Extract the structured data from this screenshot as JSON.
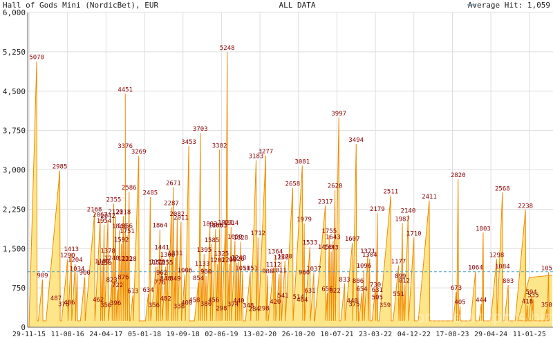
{
  "header": {
    "title": "Hall of Gods Mini (NordicBet), EUR",
    "center": "ALL DATA",
    "legend": "Average Hit: 1,059"
  },
  "watermark": "onlinejackpots.biz",
  "colors": {
    "area_fill": "#fde68a",
    "line": "#f28a00",
    "average": "#4a9fc8",
    "label": "#8b0000",
    "grid": "#dddddd",
    "axis": "#666666"
  },
  "chart_data": {
    "type": "area",
    "title": "Hall of Gods Mini (NordicBet), EUR",
    "ylim": [
      0,
      6000
    ],
    "yticks": [
      "0",
      "750",
      "1,500",
      "2,250",
      "3,000",
      "3,750",
      "4,500",
      "5,250",
      "6,000"
    ],
    "xticks": [
      "29-11-15",
      "11-08-16",
      "24-04-17",
      "05-01-18",
      "19-09-18",
      "02-06-19",
      "13-02-20",
      "26-10-20",
      "10-07-21",
      "23-03-22",
      "04-12-22",
      "17-08-23",
      "29-04-24",
      "11-01-25"
    ],
    "average": 1059,
    "grid": true,
    "legend_position": "top-right",
    "peaks": [
      {
        "x": 0.2,
        "y": 5070
      },
      {
        "x": 0.8,
        "y": 2985
      },
      {
        "x": 0.35,
        "y": 909
      },
      {
        "x": 1.1,
        "y": 1413
      },
      {
        "x": 1.0,
        "y": 1290
      },
      {
        "x": 1.2,
        "y": 1204
      },
      {
        "x": 1.25,
        "y": 1034
      },
      {
        "x": 1.45,
        "y": 960
      },
      {
        "x": 1.7,
        "y": 2168
      },
      {
        "x": 1.85,
        "y": 2067
      },
      {
        "x": 1.95,
        "y": 1954
      },
      {
        "x": 2.05,
        "y": 2042
      },
      {
        "x": 2.2,
        "y": 2355
      },
      {
        "x": 2.25,
        "y": 2120
      },
      {
        "x": 2.45,
        "y": 2118
      },
      {
        "x": 2.6,
        "y": 2586
      },
      {
        "x": 2.35,
        "y": 1846
      },
      {
        "x": 2.5,
        "y": 1856
      },
      {
        "x": 2.55,
        "y": 1751
      },
      {
        "x": 2.4,
        "y": 1592
      },
      {
        "x": 2.05,
        "y": 1378
      },
      {
        "x": 1.95,
        "y": 1150
      },
      {
        "x": 1.9,
        "y": 1180
      },
      {
        "x": 2.15,
        "y": 823
      },
      {
        "x": 2.45,
        "y": 876
      },
      {
        "x": 2.3,
        "y": 722
      },
      {
        "x": 2.5,
        "y": 1231
      },
      {
        "x": 2.6,
        "y": 1228
      },
      {
        "x": 2.15,
        "y": 1240
      },
      {
        "x": 2.5,
        "y": 4451
      },
      {
        "x": 2.5,
        "y": 3376
      },
      {
        "x": 2.85,
        "y": 3269
      },
      {
        "x": 2.7,
        "y": 613
      },
      {
        "x": 3.1,
        "y": 634
      },
      {
        "x": 3.15,
        "y": 2485
      },
      {
        "x": 3.4,
        "y": 1864
      },
      {
        "x": 3.45,
        "y": 1441
      },
      {
        "x": 3.6,
        "y": 1306
      },
      {
        "x": 3.75,
        "y": 2671
      },
      {
        "x": 3.7,
        "y": 2287
      },
      {
        "x": 3.85,
        "y": 2082
      },
      {
        "x": 3.95,
        "y": 2011
      },
      {
        "x": 3.8,
        "y": 1331
      },
      {
        "x": 3.3,
        "y": 1152
      },
      {
        "x": 3.35,
        "y": 1170
      },
      {
        "x": 3.55,
        "y": 1155
      },
      {
        "x": 3.45,
        "y": 962
      },
      {
        "x": 3.55,
        "y": 848
      },
      {
        "x": 3.4,
        "y": 776
      },
      {
        "x": 3.8,
        "y": 849
      },
      {
        "x": 4.05,
        "y": 1006
      },
      {
        "x": 4.15,
        "y": 3453
      },
      {
        "x": 4.45,
        "y": 3703
      },
      {
        "x": 4.4,
        "y": 854
      },
      {
        "x": 4.7,
        "y": 1893
      },
      {
        "x": 4.55,
        "y": 1395
      },
      {
        "x": 4.5,
        "y": 1133
      },
      {
        "x": 4.6,
        "y": 980
      },
      {
        "x": 4.75,
        "y": 1585
      },
      {
        "x": 4.85,
        "y": 1868
      },
      {
        "x": 4.95,
        "y": 1863
      },
      {
        "x": 5.0,
        "y": 1325
      },
      {
        "x": 4.9,
        "y": 1202
      },
      {
        "x": 5.1,
        "y": 1921
      },
      {
        "x": 5.25,
        "y": 1914
      },
      {
        "x": 5.35,
        "y": 1650
      },
      {
        "x": 5.5,
        "y": 1628
      },
      {
        "x": 5.2,
        "y": 1208
      },
      {
        "x": 5.4,
        "y": 1226
      },
      {
        "x": 5.45,
        "y": 1248
      },
      {
        "x": 5.15,
        "y": 5248
      },
      {
        "x": 4.95,
        "y": 3382
      },
      {
        "x": 5.55,
        "y": 1051
      },
      {
        "x": 5.9,
        "y": 3183
      },
      {
        "x": 6.15,
        "y": 3277
      },
      {
        "x": 5.95,
        "y": 1712
      },
      {
        "x": 5.75,
        "y": 1051
      },
      {
        "x": 6.2,
        "y": 988
      },
      {
        "x": 6.4,
        "y": 1364
      },
      {
        "x": 6.55,
        "y": 1250
      },
      {
        "x": 6.35,
        "y": 1112
      },
      {
        "x": 6.5,
        "y": 1011
      },
      {
        "x": 6.65,
        "y": 1270
      },
      {
        "x": 6.85,
        "y": 2658
      },
      {
        "x": 7.1,
        "y": 3081
      },
      {
        "x": 7.15,
        "y": 1979
      },
      {
        "x": 7.3,
        "y": 1533
      },
      {
        "x": 7.4,
        "y": 1037
      },
      {
        "x": 7.15,
        "y": 966
      },
      {
        "x": 7.7,
        "y": 2317
      },
      {
        "x": 7.95,
        "y": 2620
      },
      {
        "x": 7.8,
        "y": 1755
      },
      {
        "x": 7.9,
        "y": 1643
      },
      {
        "x": 7.7,
        "y": 1450
      },
      {
        "x": 7.85,
        "y": 1443
      },
      {
        "x": 7.75,
        "y": 656
      },
      {
        "x": 7.95,
        "y": 622
      },
      {
        "x": 8.05,
        "y": 3997
      },
      {
        "x": 8.5,
        "y": 3494
      },
      {
        "x": 8.4,
        "y": 1607
      },
      {
        "x": 8.2,
        "y": 833
      },
      {
        "x": 8.55,
        "y": 806
      },
      {
        "x": 8.65,
        "y": 654
      },
      {
        "x": 9.05,
        "y": 2179
      },
      {
        "x": 8.8,
        "y": 1371
      },
      {
        "x": 8.85,
        "y": 1304
      },
      {
        "x": 8.7,
        "y": 1096
      },
      {
        "x": 9.0,
        "y": 730
      },
      {
        "x": 9.05,
        "y": 631
      },
      {
        "x": 9.4,
        "y": 2511
      },
      {
        "x": 9.85,
        "y": 2140
      },
      {
        "x": 9.7,
        "y": 1987
      },
      {
        "x": 10.0,
        "y": 1710
      },
      {
        "x": 9.6,
        "y": 1177
      },
      {
        "x": 9.65,
        "y": 899
      },
      {
        "x": 9.75,
        "y": 812
      },
      {
        "x": 9.6,
        "y": 551
      },
      {
        "x": 10.4,
        "y": 2411
      },
      {
        "x": 11.15,
        "y": 2820
      },
      {
        "x": 11.8,
        "y": 1803
      },
      {
        "x": 11.6,
        "y": 1064
      },
      {
        "x": 11.1,
        "y": 673
      },
      {
        "x": 12.3,
        "y": 2568
      },
      {
        "x": 12.15,
        "y": 1298
      },
      {
        "x": 12.3,
        "y": 1084
      },
      {
        "x": 12.45,
        "y": 803
      },
      {
        "x": 12.9,
        "y": 2238
      },
      {
        "x": 13.5,
        "y": 1051
      },
      {
        "x": 13.05,
        "y": 594
      },
      {
        "x": 13.1,
        "y": 535
      },
      {
        "x": 12.95,
        "y": 418
      },
      {
        "x": 13.45,
        "y": 350
      },
      {
        "x": 11.75,
        "y": 444
      },
      {
        "x": 11.2,
        "y": 405
      }
    ],
    "low_labels": [
      {
        "x": 0.7,
        "y": 487
      },
      {
        "x": 0.9,
        "y": 376
      },
      {
        "x": 1.05,
        "y": 406
      },
      {
        "x": 1.8,
        "y": 462
      },
      {
        "x": 2.0,
        "y": 356
      },
      {
        "x": 2.25,
        "y": 396
      },
      {
        "x": 3.25,
        "y": 356
      },
      {
        "x": 3.55,
        "y": 482
      },
      {
        "x": 3.9,
        "y": 338
      },
      {
        "x": 4.1,
        "y": 400
      },
      {
        "x": 4.3,
        "y": 458
      },
      {
        "x": 4.6,
        "y": 380
      },
      {
        "x": 4.8,
        "y": 456
      },
      {
        "x": 5.0,
        "y": 298
      },
      {
        "x": 5.3,
        "y": 374
      },
      {
        "x": 5.45,
        "y": 440
      },
      {
        "x": 5.7,
        "y": 348
      },
      {
        "x": 5.85,
        "y": 284
      },
      {
        "x": 6.1,
        "y": 298
      },
      {
        "x": 6.4,
        "y": 420
      },
      {
        "x": 6.6,
        "y": 541
      },
      {
        "x": 7.0,
        "y": 514
      },
      {
        "x": 7.1,
        "y": 464
      },
      {
        "x": 7.3,
        "y": 631
      },
      {
        "x": 8.4,
        "y": 440
      },
      {
        "x": 8.45,
        "y": 375
      },
      {
        "x": 9.05,
        "y": 505
      },
      {
        "x": 9.25,
        "y": 359
      }
    ],
    "plateau": {
      "start_x": 13.0,
      "value": 950
    }
  }
}
